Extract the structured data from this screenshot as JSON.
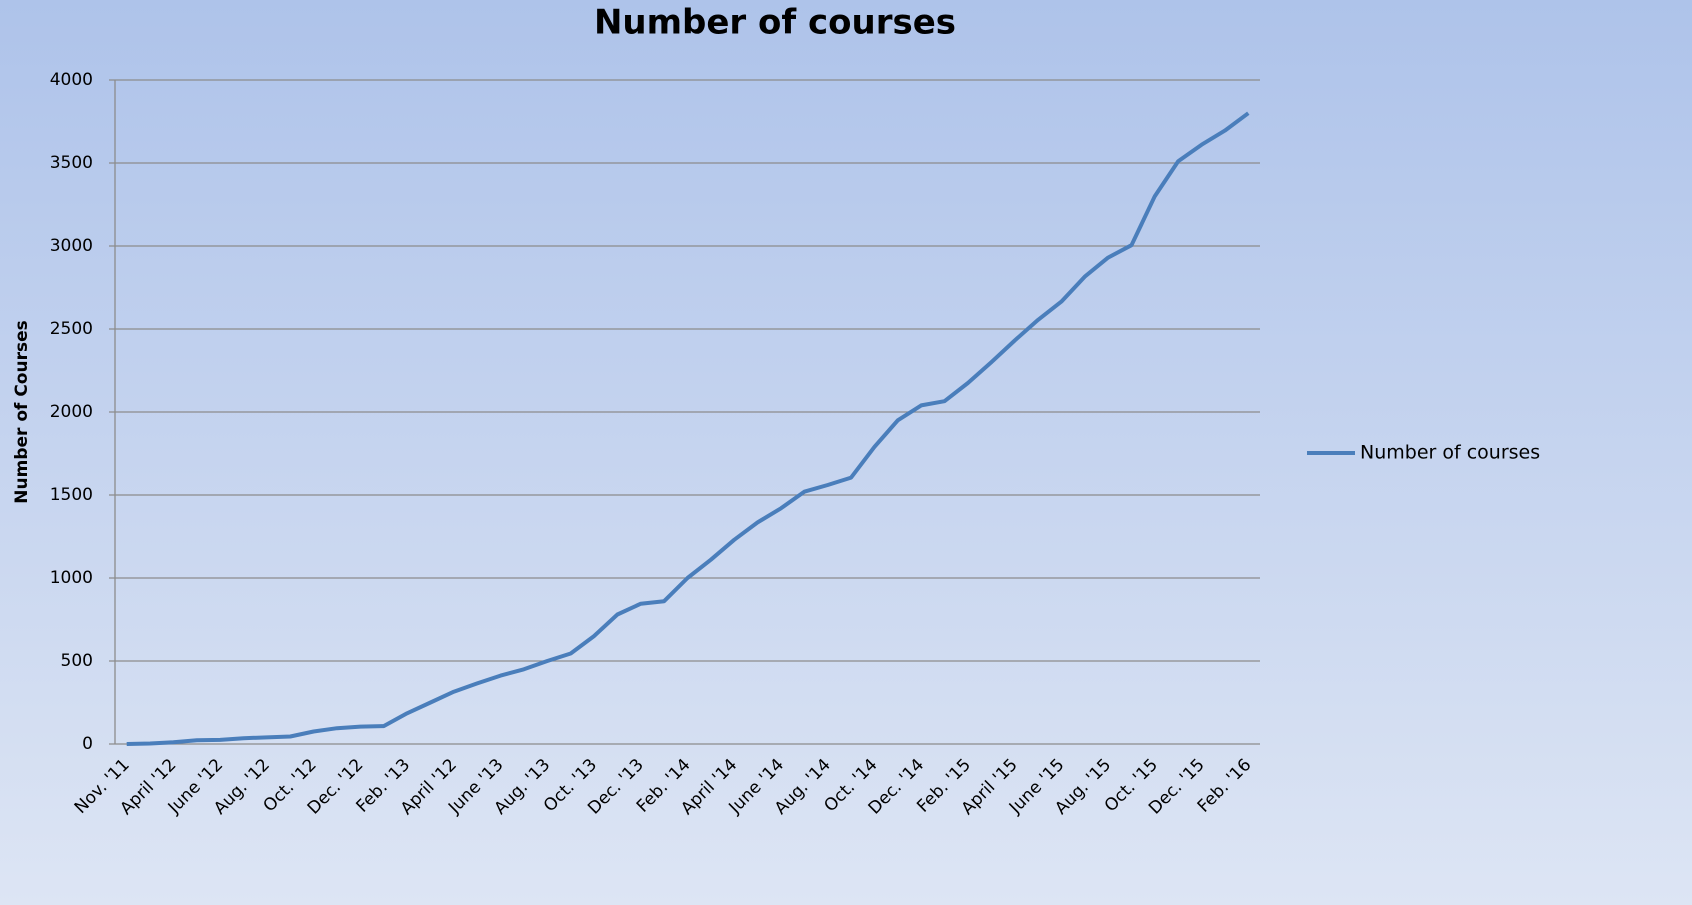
{
  "chart_data": {
    "type": "line",
    "title": "Number of courses",
    "y_label": "Number of Courses",
    "categories": [
      "Nov. '11",
      null,
      "April '12",
      null,
      "June '12",
      null,
      "Aug. '12",
      null,
      "Oct. '12",
      null,
      "Dec. '12",
      null,
      "Feb. '13",
      null,
      "April '12",
      null,
      "June '13",
      null,
      "Aug. '13",
      null,
      "Oct. '13",
      null,
      "Dec. '13",
      null,
      "Feb. '14",
      null,
      "April '14",
      null,
      "June '14",
      null,
      "Aug. '14",
      null,
      "Oct. '14",
      null,
      "Dec. '14",
      null,
      "Feb. '15",
      null,
      "April '15",
      null,
      "June '15",
      null,
      "Aug. '15",
      null,
      "Oct. '15",
      null,
      "Dec. '15",
      null,
      "Feb. '16"
    ],
    "series": [
      {
        "name": "Number of courses",
        "color": "#4a7ebb",
        "values": [
          0,
          3,
          10,
          22,
          25,
          35,
          40,
          45,
          75,
          95,
          105,
          108,
          185,
          250,
          315,
          365,
          412,
          450,
          500,
          545,
          650,
          780,
          845,
          860,
          1000,
          1110,
          1230,
          1335,
          1420,
          1520,
          1560,
          1605,
          1790,
          1950,
          2040,
          2065,
          2175,
          2300,
          2430,
          2555,
          2665,
          2815,
          2930,
          3005,
          3300,
          3510,
          3610,
          3695,
          3800
        ]
      }
    ],
    "ylim": [
      0,
      4000
    ],
    "yticks": [
      0,
      500,
      1000,
      1500,
      2000,
      2500,
      3000,
      3500,
      4000
    ],
    "grid": true,
    "legend": "right"
  }
}
